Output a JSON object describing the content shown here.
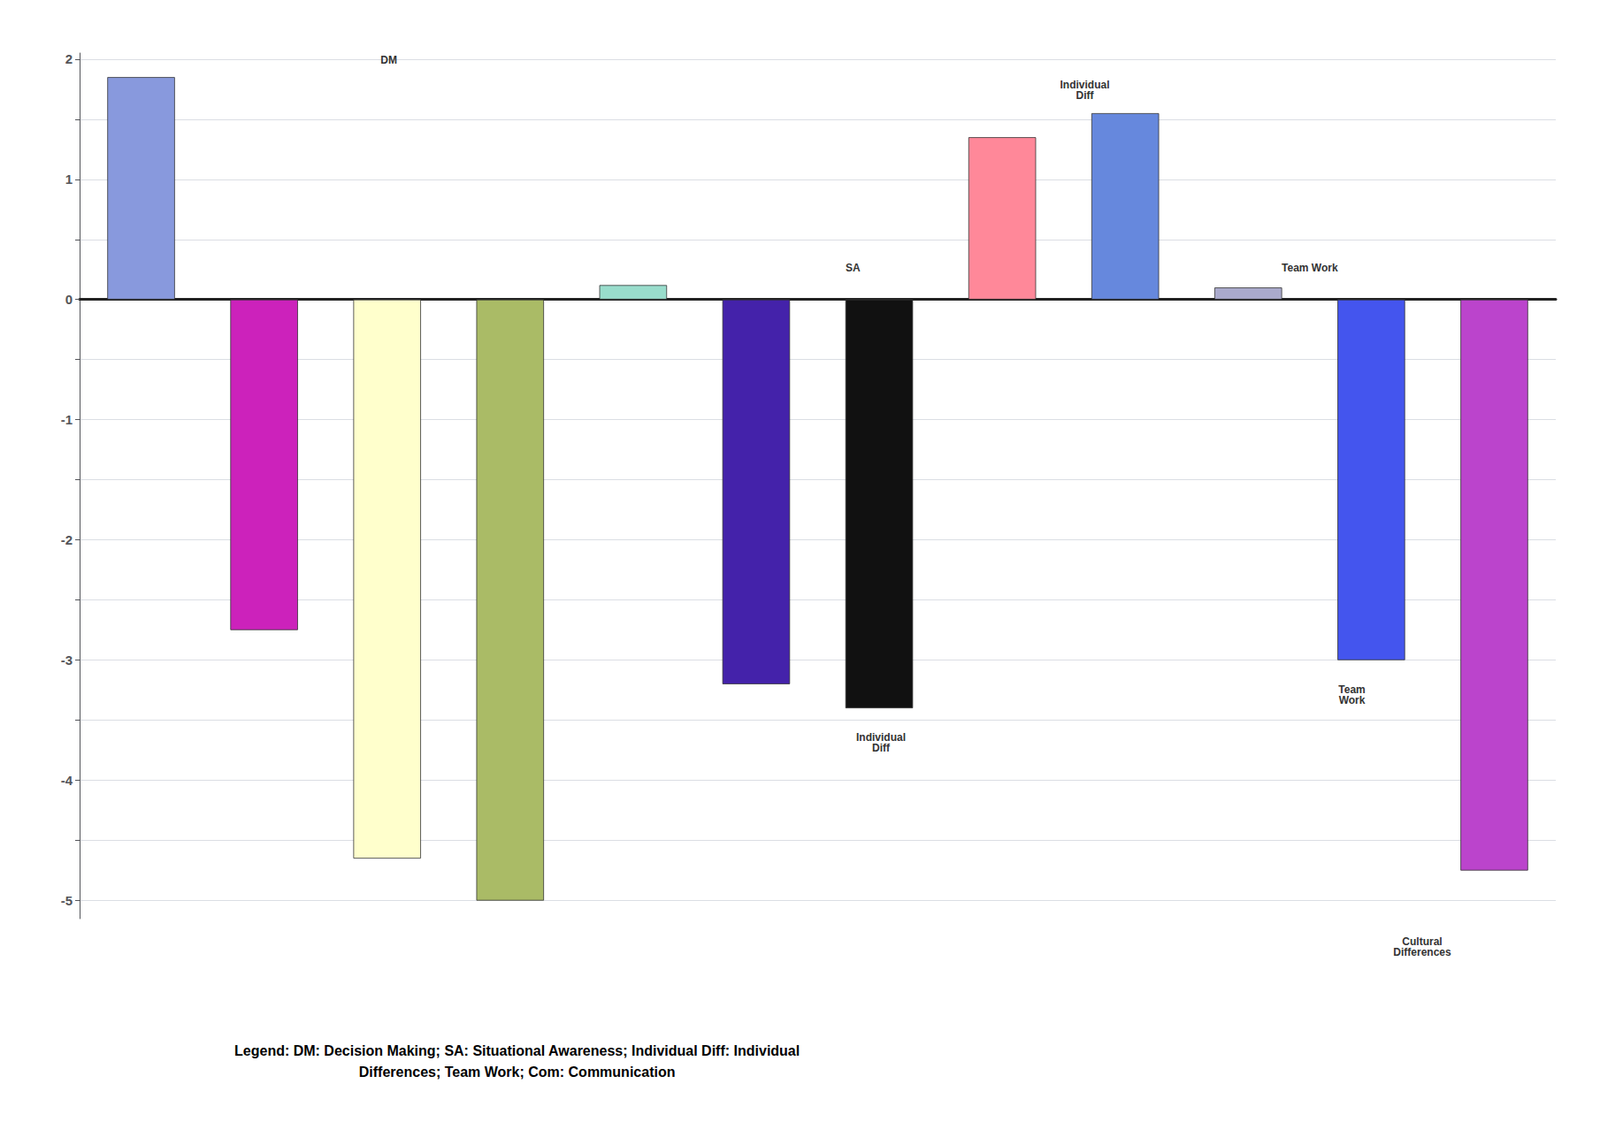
{
  "chart_data": {
    "type": "bar",
    "categories": [
      null,
      null,
      null,
      null,
      null,
      null,
      null,
      null,
      null,
      null,
      null,
      null
    ],
    "values": [
      1.85,
      -2.75,
      -4.65,
      -5.0,
      0.12,
      -3.2,
      -3.4,
      1.35,
      1.55,
      0.1,
      -3.0,
      -4.75
    ],
    "colors": [
      "#8899DD",
      "#CC22BB",
      "#FFFFCC",
      "#AABB66",
      "#99DDCC",
      "#4422AA",
      "#111111",
      "#FF8899",
      "#6688DD",
      "#AAAACC",
      "#4455EE",
      "#BB44CC"
    ],
    "ylim": [
      -5.15,
      2.05
    ],
    "yticks": [
      2,
      {
        "value": 1.5,
        "label": ""
      },
      1,
      {
        "value": 0.5,
        "label": ""
      },
      0,
      {
        "value": -0.5,
        "label": ""
      },
      -1,
      {
        "value": -1.5,
        "label": ""
      },
      -2,
      {
        "value": -2.5,
        "label": ""
      },
      -3,
      {
        "value": -3.5,
        "label": ""
      },
      -4,
      {
        "value": -4.5,
        "label": ""
      },
      -5
    ],
    "grid": true,
    "annotations": [
      {
        "text": "DM",
        "x": 0.22,
        "y": 1.95
      },
      {
        "text": "SA",
        "x": 0.55,
        "y": 0.22
      },
      {
        "text": "Individual\nDiff",
        "x": 0.715,
        "y": 1.65
      },
      {
        "text": "Team Work",
        "x": 0.875,
        "y": 0.22
      },
      {
        "text": "Individual\nDiff",
        "x": 0.57,
        "y": -3.6
      },
      {
        "text": "Team\nWork",
        "x": 0.905,
        "y": -3.2
      },
      {
        "text": "Cultural\nDifferences",
        "x": 0.955,
        "y": -5.3
      }
    ],
    "caption": "Legend: DM: Decision Making; SA: Situational Awareness; Individual Diff: Individual\nDifferences; Team Work; Com: Communication"
  }
}
